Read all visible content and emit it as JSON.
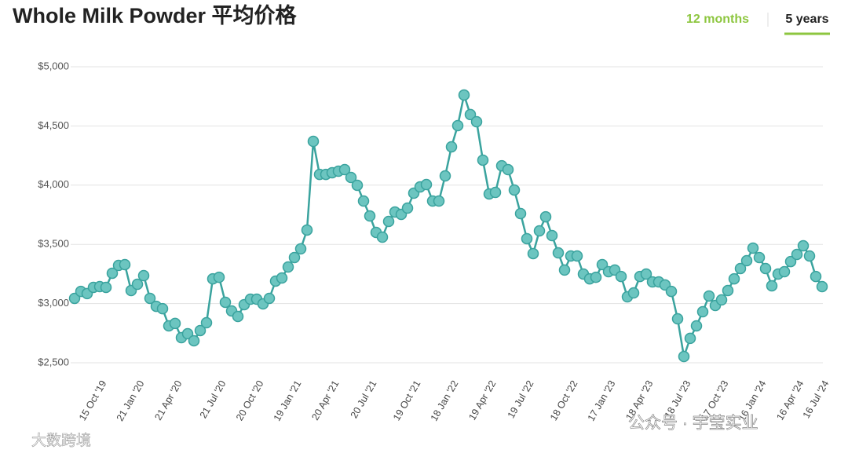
{
  "chart_data": {
    "type": "line",
    "title": "Whole Milk Powder 平均价格",
    "tabs": [
      "12 months",
      "5 years"
    ],
    "watermarks": [
      "大数跨境",
      "公众号 · 宇莹实业"
    ],
    "color": "#3aa39e",
    "marker_color": "#6cc5c0",
    "grid": true,
    "ylim": [
      2500,
      5000
    ],
    "yticks": [
      {
        "value": 2500,
        "label": "$2,500"
      },
      {
        "value": 3000,
        "label": "$3,000"
      },
      {
        "value": 3500,
        "label": "$3,500"
      },
      {
        "value": 4000,
        "label": "$4,000"
      },
      {
        "value": 4500,
        "label": "$4,500"
      },
      {
        "value": 5000,
        "label": "$5,000"
      }
    ],
    "categories": [
      null,
      null,
      null,
      null,
      "15 Oct '19",
      null,
      null,
      null,
      null,
      null,
      "21 Jan '20",
      null,
      null,
      null,
      null,
      null,
      "21 Apr '20",
      null,
      null,
      null,
      null,
      null,
      null,
      "21 Jul '20",
      null,
      null,
      null,
      null,
      null,
      "20 Oct '20",
      null,
      null,
      null,
      null,
      null,
      "19 Jan '21",
      null,
      null,
      null,
      null,
      null,
      "20 Apr '21",
      null,
      null,
      null,
      null,
      null,
      "20 Jul '21",
      null,
      null,
      null,
      null,
      null,
      null,
      "19 Oct '21",
      null,
      null,
      null,
      null,
      null,
      "18 Jan '22",
      null,
      null,
      null,
      null,
      null,
      "19 Apr '22",
      null,
      null,
      null,
      null,
      null,
      "19 Jul '22",
      null,
      null,
      null,
      null,
      null,
      null,
      "18 Oct '22",
      null,
      null,
      null,
      null,
      null,
      "17 Jan '23",
      null,
      null,
      null,
      null,
      null,
      "18 Apr '23",
      null,
      null,
      null,
      null,
      null,
      "18 Jul '23",
      null,
      null,
      null,
      null,
      null,
      "17 Oct '23",
      null,
      null,
      null,
      null,
      null,
      "16 Jan '24",
      null,
      null,
      null,
      null,
      null,
      "16 Apr '24",
      null,
      null,
      null,
      "16 Jul '24"
    ],
    "values": [
      3044,
      3103,
      3084,
      3137,
      3143,
      3137,
      3256,
      3322,
      3329,
      3110,
      3163,
      3236,
      3044,
      2977,
      2957,
      2812,
      2832,
      2712,
      2745,
      2686,
      2772,
      2838,
      3209,
      3222,
      3011,
      2938,
      2891,
      2991,
      3037,
      3037,
      2997,
      3044,
      3190,
      3216,
      3309,
      3389,
      3462,
      3621,
      4370,
      4091,
      4091,
      4105,
      4118,
      4131,
      4065,
      3999,
      3866,
      3740,
      3601,
      3561,
      3694,
      3773,
      3753,
      3806,
      3932,
      3985,
      4005,
      3866,
      3866,
      4078,
      4324,
      4503,
      4761,
      4596,
      4536,
      4211,
      3926,
      3939,
      4164,
      4131,
      3959,
      3760,
      3548,
      3422,
      3614,
      3733,
      3574,
      3428,
      3283,
      3402,
      3402,
      3249,
      3209,
      3222,
      3329,
      3269,
      3283,
      3229,
      3057,
      3090,
      3229,
      3249,
      3183,
      3183,
      3157,
      3103,
      2871,
      2553,
      2706,
      2812,
      2931,
      3064,
      2984,
      3031,
      3110,
      3209,
      3296,
      3362,
      3468,
      3389,
      3296,
      3150,
      3249,
      3269,
      3355,
      3415,
      3488,
      3402,
      3229,
      3143
    ]
  }
}
